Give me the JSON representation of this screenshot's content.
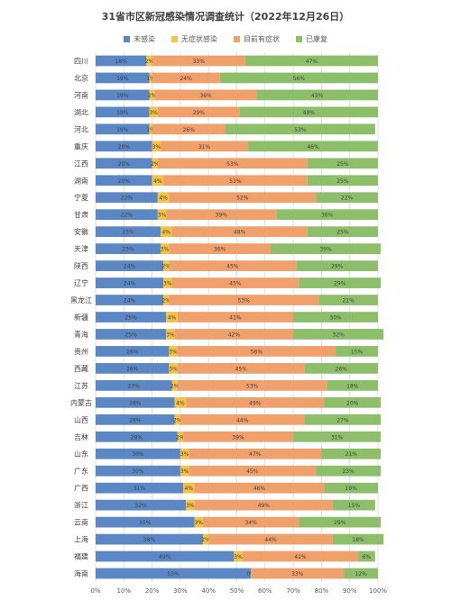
{
  "chart_data": {
    "type": "bar",
    "orientation": "horizontal",
    "stacked": true,
    "title": "31省市区新冠感染情况调查统计（2022年12月26日）",
    "legend_position": "top",
    "xlim": [
      0,
      100
    ],
    "x_ticks": [
      "0%",
      "10%",
      "20%",
      "30%",
      "40%",
      "50%",
      "60%",
      "70%",
      "80%",
      "90%",
      "100%"
    ],
    "grid": true,
    "categories": [
      "四川",
      "北京",
      "河南",
      "湖北",
      "河北",
      "重庆",
      "江西",
      "湖南",
      "宁夏",
      "甘肃",
      "安徽",
      "天津",
      "陕西",
      "辽宁",
      "黑龙江",
      "新疆",
      "青海",
      "贵州",
      "西藏",
      "江苏",
      "内蒙古",
      "山西",
      "吉林",
      "山东",
      "广东",
      "广西",
      "浙江",
      "云南",
      "上海",
      "福建",
      "海南"
    ],
    "series": [
      {
        "name": "未感染",
        "color": "#5B87C5",
        "values": [
          18,
          19,
          19,
          19,
          19,
          20,
          20,
          20,
          22,
          22,
          23,
          23,
          24,
          24,
          24,
          25,
          25,
          26,
          26,
          27,
          28,
          28,
          29,
          30,
          30,
          31,
          32,
          35,
          38,
          49,
          55
        ]
      },
      {
        "name": "无症状感染",
        "color": "#F5C342",
        "values": [
          2,
          1,
          2,
          3,
          1,
          3,
          2,
          4,
          4,
          3,
          4,
          3,
          2,
          3,
          2,
          4,
          3,
          3,
          3,
          2,
          4,
          2,
          2,
          3,
          3,
          4,
          3,
          3,
          2,
          3,
          0
        ]
      },
      {
        "name": "目前有症状",
        "color": "#F0A06B",
        "values": [
          33,
          24,
          36,
          29,
          26,
          31,
          53,
          51,
          52,
          39,
          48,
          36,
          45,
          45,
          53,
          41,
          42,
          56,
          45,
          53,
          49,
          44,
          39,
          47,
          45,
          46,
          49,
          34,
          44,
          41,
          33
        ]
      },
      {
        "name": "已康复",
        "color": "#8DBF6A",
        "values": [
          47,
          56,
          43,
          49,
          53,
          46,
          25,
          25,
          22,
          36,
          25,
          39,
          29,
          29,
          21,
          30,
          32,
          15,
          26,
          18,
          20,
          27,
          31,
          21,
          23,
          19,
          15,
          29,
          18,
          6,
          12
        ]
      }
    ]
  }
}
